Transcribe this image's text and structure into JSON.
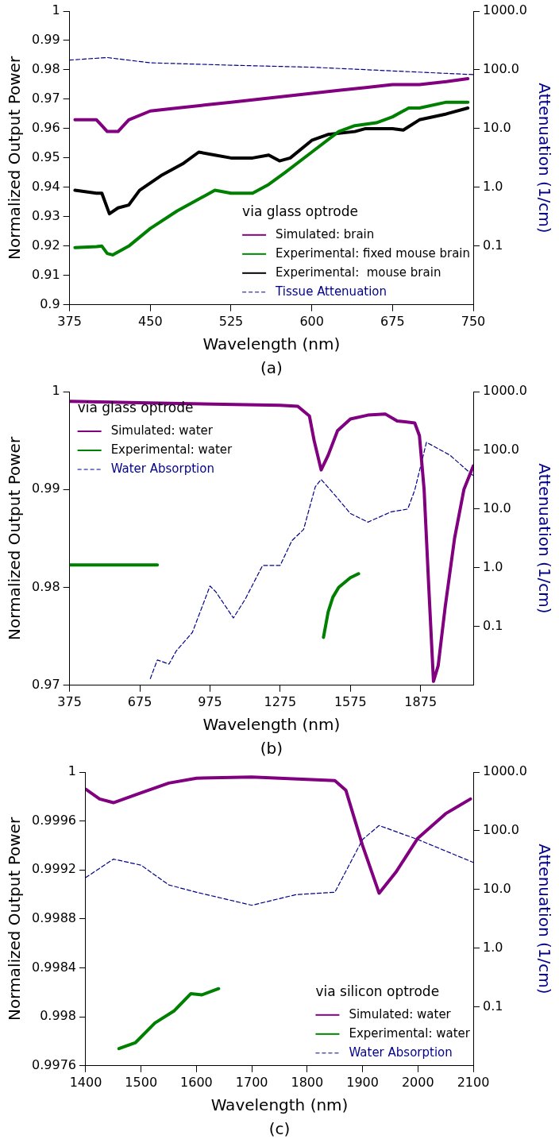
{
  "chart_data": [
    {
      "type": "line",
      "xlabel": "Wavelength (nm)",
      "ylabel": "Normalized Output Power",
      "y2label": "Attenuation (1/cm)",
      "legend_title": "via glass optrode",
      "legend": "bottom right",
      "grid": false,
      "marker": "none",
      "log": "y2",
      "annotations": [
        "(a)"
      ],
      "xlim": [
        375,
        750
      ],
      "xticks": [
        375,
        450,
        525,
        600,
        675,
        750
      ],
      "ylim": [
        0.9,
        1
      ],
      "yticks": [
        0.9,
        0.91,
        0.92,
        0.93,
        0.94,
        0.95,
        0.96,
        0.97,
        0.98,
        0.99,
        1
      ],
      "y2lim": [
        0.01,
        1000
      ],
      "y2ticks": [
        {
          "value": 0.1,
          "label": "0.1"
        },
        {
          "value": 1,
          "label": "1.0"
        },
        {
          "value": 10,
          "label": "10.0"
        },
        {
          "value": 100,
          "label": "100.0"
        },
        {
          "value": 1000,
          "label": "1000.0"
        }
      ],
      "series": [
        {
          "name": "Simulated: brain",
          "color": "#800080",
          "x": [
            380,
            400,
            405,
            410,
            420,
            430,
            450,
            475,
            500,
            525,
            550,
            575,
            600,
            625,
            650,
            675,
            700,
            725,
            745
          ],
          "values": [
            0.963,
            0.963,
            0.961,
            0.959,
            0.959,
            0.963,
            0.966,
            0.967,
            0.968,
            0.969,
            0.97,
            0.971,
            0.972,
            0.973,
            0.974,
            0.975,
            0.975,
            0.976,
            0.977
          ]
        },
        {
          "name": "Experimental: fixed mouse brain",
          "color": "#008000",
          "x": [
            380,
            400,
            405,
            410,
            415,
            430,
            450,
            475,
            500,
            510,
            525,
            545,
            560,
            575,
            600,
            625,
            640,
            660,
            675,
            690,
            700,
            725,
            745
          ],
          "values": [
            0.9195,
            0.9198,
            0.92,
            0.9175,
            0.917,
            0.92,
            0.926,
            0.932,
            0.937,
            0.939,
            0.938,
            0.938,
            0.941,
            0.945,
            0.952,
            0.959,
            0.961,
            0.962,
            0.964,
            0.967,
            0.967,
            0.969,
            0.969
          ]
        },
        {
          "name": "Experimental:  mouse brain",
          "color": "#000000",
          "x": [
            380,
            400,
            405,
            412,
            420,
            430,
            440,
            460,
            480,
            495,
            510,
            525,
            545,
            560,
            570,
            580,
            600,
            615,
            640,
            650,
            675,
            685,
            700,
            725,
            745
          ],
          "values": [
            0.939,
            0.938,
            0.938,
            0.931,
            0.933,
            0.934,
            0.939,
            0.944,
            0.948,
            0.952,
            0.951,
            0.95,
            0.95,
            0.951,
            0.949,
            0.95,
            0.956,
            0.958,
            0.959,
            0.96,
            0.96,
            0.9595,
            0.963,
            0.965,
            0.967
          ]
        },
        {
          "name": "Tissue Attenuation",
          "color": "#00008b",
          "axis": "y2",
          "line_style": "dashed",
          "x": [
            375,
            410,
            450,
            525,
            600,
            675,
            750
          ],
          "values": [
            147,
            162,
            132,
            120,
            111,
            96,
            83
          ]
        }
      ]
    },
    {
      "type": "line",
      "xlabel": "Wavelength (nm)",
      "ylabel": "Normalized Output Power",
      "y2label": "Attenuation (1/cm)",
      "legend_title": "via glass optrode",
      "legend": "top left",
      "grid": false,
      "marker": "none",
      "log": "y2",
      "annotations": [
        "(b)"
      ],
      "xlim": [
        375,
        2100
      ],
      "xticks": [
        375,
        675,
        975,
        1275,
        1575,
        1875
      ],
      "ylim": [
        0.97,
        1
      ],
      "yticks": [
        0.97,
        0.98,
        0.99,
        1
      ],
      "y2lim": [
        0.01,
        1000
      ],
      "y2ticks": [
        {
          "value": 0.1,
          "label": "0.1"
        },
        {
          "value": 1,
          "label": "1.0"
        },
        {
          "value": 10,
          "label": "10.0"
        },
        {
          "value": 100,
          "label": "100.0"
        },
        {
          "value": 1000,
          "label": "1000.0"
        }
      ],
      "series": [
        {
          "name": "Simulated: water",
          "color": "#800080",
          "x": [
            375,
            800,
            1275,
            1350,
            1400,
            1420,
            1450,
            1480,
            1520,
            1575,
            1650,
            1725,
            1775,
            1850,
            1870,
            1890,
            1910,
            1930,
            1950,
            1980,
            2020,
            2060,
            2100
          ],
          "values": [
            0.999,
            0.9988,
            0.9986,
            0.9985,
            0.9975,
            0.995,
            0.992,
            0.9935,
            0.996,
            0.9972,
            0.9976,
            0.9977,
            0.997,
            0.9968,
            0.9955,
            0.99,
            0.98,
            0.9704,
            0.972,
            0.978,
            0.985,
            0.99,
            0.9924
          ]
        },
        {
          "name": "Experimental: water",
          "color": "#008000",
          "x": [
            375,
            750,
            1100,
            1460,
            1480,
            1500,
            1525,
            1575,
            1610
          ],
          "values": [
            0.9823,
            0.9823,
            null,
            0.9749,
            0.9775,
            0.979,
            0.98,
            0.981,
            0.9814
          ]
        },
        {
          "name": "Water Absorption",
          "color": "#00008b",
          "axis": "y2",
          "line_style": "dashed",
          "x": [
            720,
            750,
            800,
            830,
            900,
            975,
            1000,
            1075,
            1125,
            1200,
            1275,
            1325,
            1375,
            1425,
            1450,
            1500,
            1575,
            1650,
            1750,
            1820,
            1850,
            1900,
            2000,
            2100
          ],
          "values": [
            0.013,
            0.027,
            0.023,
            0.038,
            0.08,
            0.49,
            0.39,
            0.14,
            0.29,
            1.1,
            1.1,
            2.9,
            4.5,
            24,
            32,
            19,
            8.4,
            6,
            9,
            10,
            21,
            137,
            83,
            37
          ]
        }
      ]
    },
    {
      "type": "line",
      "xlabel": "Wavelength (nm)",
      "ylabel": "Normalized Output Power",
      "y2label": "Attenuation (1/cm)",
      "legend_title": "via silicon optrode",
      "legend": "bottom right",
      "grid": false,
      "marker": "none",
      "log": "y2",
      "annotations": [
        "(c)"
      ],
      "xlim": [
        1400,
        2100
      ],
      "xticks": [
        1400,
        1500,
        1600,
        1700,
        1800,
        1900,
        2000,
        2100
      ],
      "ylim": [
        0.9976,
        1
      ],
      "yticks": [
        0.9976,
        0.998,
        0.9984,
        0.9988,
        0.9992,
        0.9996,
        1
      ],
      "y2lim": [
        0.01,
        1000
      ],
      "y2ticks": [
        {
          "value": 0.1,
          "label": "0.1"
        },
        {
          "value": 1,
          "label": "1.0"
        },
        {
          "value": 10,
          "label": "10.0"
        },
        {
          "value": 100,
          "label": "100.0"
        },
        {
          "value": 1000,
          "label": "1000.0"
        }
      ],
      "series": [
        {
          "name": "Simulated: water",
          "color": "#800080",
          "x": [
            1400,
            1425,
            1450,
            1500,
            1550,
            1600,
            1700,
            1750,
            1800,
            1850,
            1870,
            1900,
            1930,
            1960,
            2000,
            2050,
            2095
          ],
          "values": [
            0.99986,
            0.99978,
            0.99975,
            0.99983,
            0.99991,
            0.99995,
            0.99996,
            0.99995,
            0.99994,
            0.99993,
            0.99985,
            0.9994,
            0.99901,
            0.99918,
            0.99946,
            0.99966,
            0.99978
          ]
        },
        {
          "name": "Experimental: water",
          "color": "#008000",
          "x": [
            1460,
            1490,
            1525,
            1560,
            1590,
            1610,
            1640
          ],
          "values": [
            0.99774,
            0.99779,
            0.99795,
            0.99805,
            0.99819,
            0.99818,
            0.99823
          ]
        },
        {
          "name": "Water Absorption",
          "color": "#00008b",
          "axis": "y2",
          "line_style": "dashed",
          "x": [
            1400,
            1450,
            1500,
            1550,
            1600,
            1700,
            1780,
            1850,
            1900,
            1930,
            2000,
            2100
          ],
          "values": [
            16,
            33,
            26,
            12,
            9,
            5.4,
            8.2,
            9,
            71,
            123,
            71,
            29
          ]
        }
      ]
    }
  ]
}
